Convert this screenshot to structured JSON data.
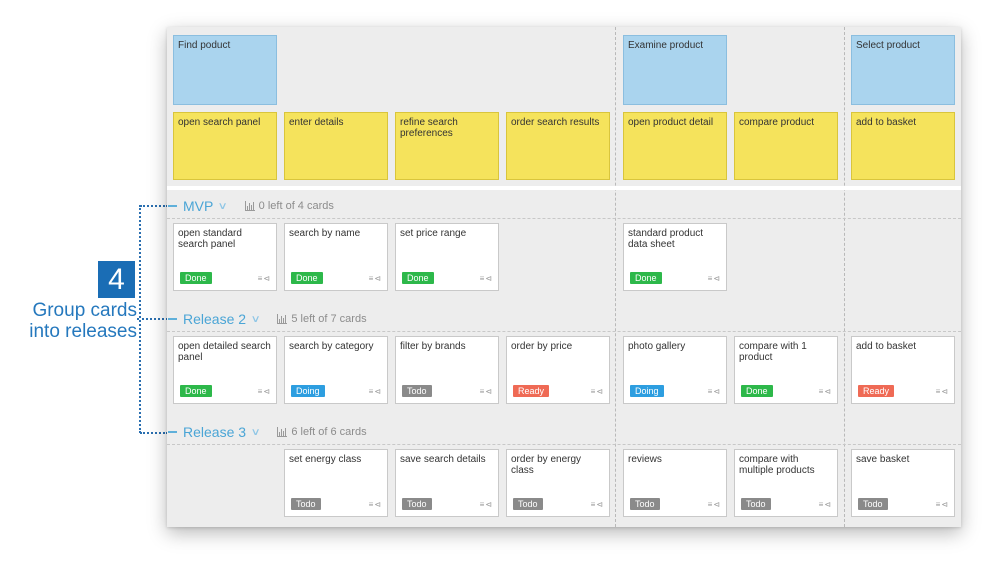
{
  "callout": {
    "number": "4",
    "text": "Group cards into releases"
  },
  "activities": [
    "Find poduct",
    "Examine product",
    "Select product"
  ],
  "tasks": [
    "open search panel",
    "enter details",
    "refine search preferences",
    "order search results",
    "open product detail",
    "compare product",
    "add to basket"
  ],
  "releases": [
    {
      "name": "MVP",
      "count": "0 left of 4 cards"
    },
    {
      "name": "Release 2",
      "count": "5 left of 7 cards"
    },
    {
      "name": "Release 3",
      "count": "6 left of 6 cards"
    }
  ],
  "stories": {
    "mvp": [
      {
        "title": "open standard search panel",
        "status": "Done"
      },
      {
        "title": "search by name",
        "status": "Done"
      },
      {
        "title": "set price range",
        "status": "Done"
      },
      {
        "title": "standard product data sheet",
        "status": "Done"
      }
    ],
    "r2": [
      {
        "title": "open detailed search panel",
        "status": "Done"
      },
      {
        "title": "search by category",
        "status": "Doing"
      },
      {
        "title": "filter by brands",
        "status": "Todo"
      },
      {
        "title": "order by price",
        "status": "Ready"
      },
      {
        "title": "photo gallery",
        "status": "Doing"
      },
      {
        "title": "compare with 1 product",
        "status": "Done"
      },
      {
        "title": "add to basket",
        "status": "Ready"
      }
    ],
    "r3": [
      {
        "title": "set energy class",
        "status": "Todo"
      },
      {
        "title": "save search details",
        "status": "Todo"
      },
      {
        "title": "order by energy class",
        "status": "Todo"
      },
      {
        "title": "reviews",
        "status": "Todo"
      },
      {
        "title": "compare with multiple products",
        "status": "Todo"
      },
      {
        "title": "save basket",
        "status": "Todo"
      }
    ]
  },
  "colors": {
    "activity": "#aad4ee",
    "task": "#f5e35c",
    "done": "#2db84a",
    "doing": "#2d9ee0",
    "todo": "#8a8a8a",
    "ready": "#ef6a55",
    "accent": "#4aa5d6"
  },
  "icons": [
    "bar-chart-icon",
    "chevron-down-icon",
    "list-icon",
    "share-icon"
  ]
}
